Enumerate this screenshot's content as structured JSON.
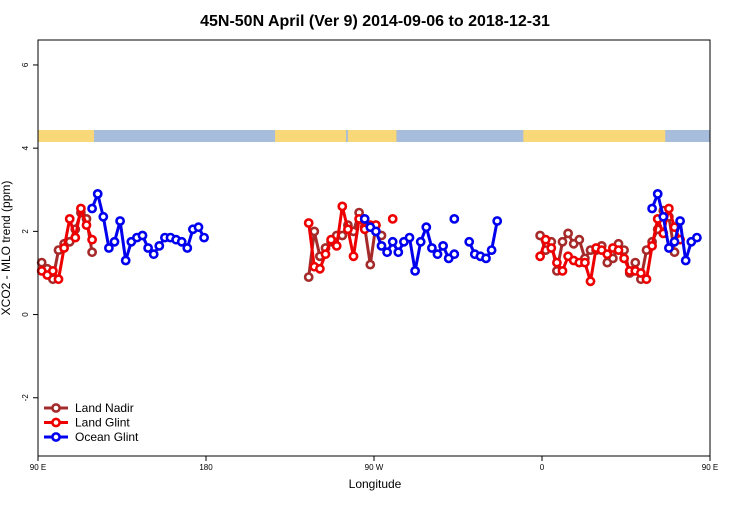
{
  "chart_data": {
    "type": "line",
    "title": "45N-50N April (Ver 9)   2014-09-06 to 2018-12-31",
    "xlabel": "Longitude",
    "ylabel": "XCO2 - MLO trend (ppm)",
    "xlim": [
      90,
      450
    ],
    "ylim": [
      -3.4,
      6.6
    ],
    "x_ticks": [
      {
        "value": 90,
        "label": "90 E"
      },
      {
        "value": 180,
        "label": "180"
      },
      {
        "value": 270,
        "label": "90 W"
      },
      {
        "value": 360,
        "label": "0"
      },
      {
        "value": 450,
        "label": "90 E"
      },
      {
        "value": 540,
        "label": "180"
      }
    ],
    "y_ticks": [
      {
        "value": -2,
        "label": "-2"
      },
      {
        "value": 0,
        "label": "0"
      },
      {
        "value": 2,
        "label": "2"
      },
      {
        "value": 4,
        "label": "4"
      },
      {
        "value": 6,
        "label": "6"
      }
    ],
    "legend_position": "bottom-left",
    "land_ocean_strip": true,
    "colors": {
      "land": "#f8d878",
      "ocean": "#a8bcdc"
    },
    "series": [
      {
        "name": "Land Nadir",
        "color": "#a52a2a",
        "segments": [
          [
            [
              92,
              1.25
            ],
            [
              95,
              1.1
            ],
            [
              98,
              0.85
            ],
            [
              101,
              1.55
            ],
            [
              104,
              1.7
            ],
            [
              107,
              1.75
            ],
            [
              110,
              2.05
            ],
            [
              113,
              2.45
            ],
            [
              116,
              2.3
            ],
            [
              119,
              1.5
            ]
          ],
          [
            [
              235,
              0.9
            ],
            [
              238,
              2.0
            ],
            [
              241,
              1.4
            ],
            [
              244,
              1.6
            ],
            [
              247,
              1.75
            ],
            [
              250,
              1.9
            ],
            [
              253,
              1.9
            ],
            [
              256,
              2.15
            ],
            [
              259,
              2.0
            ],
            [
              262,
              2.45
            ],
            [
              265,
              2.1
            ],
            [
              268,
              1.2
            ],
            [
              271,
              2.15
            ],
            [
              274,
              1.9
            ]
          ],
          [
            [
              359,
              1.9
            ],
            [
              362,
              1.55
            ],
            [
              365,
              1.75
            ],
            [
              368,
              1.05
            ],
            [
              371,
              1.75
            ],
            [
              374,
              1.95
            ],
            [
              377,
              1.7
            ],
            [
              380,
              1.8
            ],
            [
              383,
              1.35
            ],
            [
              386,
              1.55
            ],
            [
              389,
              1.55
            ],
            [
              392,
              1.65
            ],
            [
              395,
              1.25
            ],
            [
              398,
              1.35
            ],
            [
              401,
              1.7
            ],
            [
              404,
              1.55
            ],
            [
              407,
              1.0
            ],
            [
              410,
              1.25
            ],
            [
              413,
              0.85
            ],
            [
              416,
              1.55
            ],
            [
              419,
              1.75
            ],
            [
              422,
              2.05
            ],
            [
              425,
              2.5
            ],
            [
              428,
              2.35
            ],
            [
              431,
              1.5
            ]
          ]
        ]
      },
      {
        "name": "Land Glint",
        "color": "#ee0000",
        "segments": [
          [
            [
              92,
              1.05
            ],
            [
              95,
              0.95
            ],
            [
              98,
              1.05
            ],
            [
              101,
              0.85
            ],
            [
              104,
              1.6
            ],
            [
              107,
              2.3
            ],
            [
              110,
              1.85
            ],
            [
              113,
              2.55
            ],
            [
              116,
              2.15
            ],
            [
              119,
              1.8
            ]
          ],
          [
            [
              235,
              2.2
            ],
            [
              238,
              1.15
            ],
            [
              241,
              1.1
            ],
            [
              244,
              1.45
            ],
            [
              247,
              1.8
            ],
            [
              250,
              1.65
            ],
            [
              253,
              2.6
            ],
            [
              256,
              2.05
            ],
            [
              259,
              1.4
            ],
            [
              262,
              2.3
            ],
            [
              265,
              2.05
            ],
            [
              268,
              2.15
            ],
            [
              271,
              2.15
            ]
          ],
          [
            [
              280,
              2.3
            ]
          ],
          [
            [
              359,
              1.4
            ],
            [
              362,
              1.8
            ],
            [
              365,
              1.6
            ],
            [
              368,
              1.25
            ],
            [
              371,
              1.05
            ],
            [
              374,
              1.4
            ],
            [
              377,
              1.3
            ],
            [
              380,
              1.25
            ],
            [
              383,
              1.25
            ],
            [
              386,
              0.8
            ],
            [
              389,
              1.6
            ],
            [
              392,
              1.55
            ],
            [
              395,
              1.45
            ],
            [
              398,
              1.6
            ],
            [
              401,
              1.55
            ],
            [
              404,
              1.35
            ],
            [
              407,
              1.05
            ],
            [
              410,
              1.05
            ],
            [
              413,
              1.0
            ],
            [
              416,
              0.85
            ],
            [
              419,
              1.65
            ],
            [
              422,
              2.3
            ],
            [
              425,
              1.95
            ],
            [
              428,
              2.55
            ],
            [
              431,
              2.1
            ],
            [
              434,
              1.8
            ]
          ]
        ]
      },
      {
        "name": "Ocean Glint",
        "color": "#0000ee",
        "segments": [
          [
            [
              119,
              2.55
            ],
            [
              122,
              2.9
            ],
            [
              125,
              2.35
            ],
            [
              128,
              1.6
            ],
            [
              131,
              1.75
            ],
            [
              134,
              2.25
            ],
            [
              137,
              1.3
            ],
            [
              140,
              1.75
            ],
            [
              143,
              1.85
            ],
            [
              146,
              1.9
            ],
            [
              149,
              1.6
            ],
            [
              152,
              1.45
            ],
            [
              155,
              1.65
            ],
            [
              158,
              1.85
            ],
            [
              161,
              1.85
            ],
            [
              164,
              1.8
            ],
            [
              167,
              1.75
            ],
            [
              170,
              1.6
            ],
            [
              173,
              2.05
            ],
            [
              176,
              2.1
            ],
            [
              179,
              1.85
            ]
          ],
          [
            [
              265,
              2.3
            ],
            [
              268,
              2.1
            ],
            [
              271,
              2.0
            ],
            [
              274,
              1.65
            ],
            [
              277,
              1.5
            ],
            [
              280,
              1.75
            ],
            [
              283,
              1.5
            ],
            [
              286,
              1.75
            ],
            [
              289,
              1.85
            ],
            [
              292,
              1.05
            ],
            [
              295,
              1.75
            ],
            [
              298,
              2.1
            ],
            [
              301,
              1.6
            ],
            [
              304,
              1.45
            ],
            [
              307,
              1.65
            ],
            [
              310,
              1.35
            ],
            [
              313,
              1.45
            ]
          ],
          [
            [
              313,
              2.3
            ]
          ],
          [
            [
              321,
              1.75
            ],
            [
              324,
              1.45
            ],
            [
              327,
              1.4
            ],
            [
              330,
              1.35
            ],
            [
              333,
              1.55
            ],
            [
              336,
              2.25
            ]
          ],
          [
            [
              419,
              2.55
            ],
            [
              422,
              2.9
            ],
            [
              425,
              2.35
            ],
            [
              428,
              1.6
            ],
            [
              431,
              1.75
            ],
            [
              434,
              2.25
            ],
            [
              437,
              1.3
            ],
            [
              440,
              1.75
            ],
            [
              443,
              1.85
            ]
          ]
        ]
      }
    ]
  }
}
